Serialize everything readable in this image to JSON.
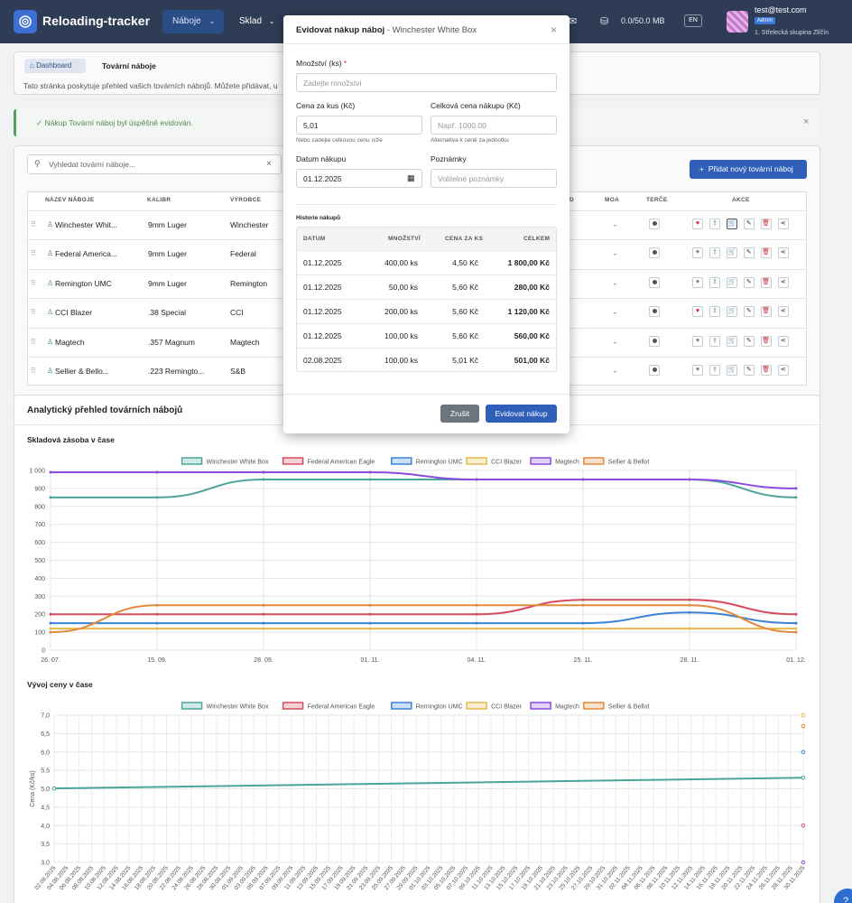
{
  "header": {
    "app_title": "Reloading-tracker",
    "nav": [
      {
        "label": "Náboje",
        "active": true
      },
      {
        "label": "Sklad",
        "active": false
      }
    ],
    "storage": "0.0/50.0 MB",
    "lang": "EN",
    "user_email": "test@test.com",
    "user_role": "Admin",
    "user_group": "1. Střelecká skupina Zlíčín"
  },
  "breadcrumb": {
    "home": "Dashboard",
    "current": "Tovární náboje"
  },
  "description": "Tato stránka poskytuje přehled vašich továrních nábojů. Můžete přidávat, u",
  "alert": {
    "text": "Nákup Tovární náboj byl úspěšně evidován."
  },
  "search": {
    "placeholder": "Vyhledat tovární náboje..."
  },
  "add_button": "Přidat nový tovární náboj",
  "table": {
    "headers": {
      "name": "NÁZEV NÁBOJE",
      "caliber": "KALIBR",
      "maker": "VÝROBCE",
      "d": "D",
      "moa": "MOA",
      "targets": "TERČE",
      "actions": "AKCE"
    },
    "rows": [
      {
        "name": "Winchester Whit...",
        "caliber": "9mm Luger",
        "maker": "Winchester",
        "moa": "-"
      },
      {
        "name": "Federal America...",
        "caliber": "9mm Luger",
        "maker": "Federal",
        "moa": "-"
      },
      {
        "name": "Remington UMC",
        "caliber": "9mm Luger",
        "maker": "Remington",
        "moa": "-"
      },
      {
        "name": "CCI Blazer",
        "caliber": ".38 Special",
        "maker": "CCI",
        "moa": "-"
      },
      {
        "name": "Magtech",
        "caliber": ".357 Magnum",
        "maker": "Magtech",
        "moa": "-"
      },
      {
        "name": "Sellier & Bello...",
        "caliber": ".223 Remingto...",
        "maker": "S&B",
        "moa": "-"
      }
    ]
  },
  "analytics": {
    "title": "Analytický přehled továrních nábojů",
    "stock_title": "Skladová zásoba v čase",
    "price_title": "Vývoj ceny v čase",
    "price_ylabel": "Cena (Kč/ks)"
  },
  "modal": {
    "title": "Evidovat nákup náboj",
    "title_sub": "- Winchester White Box",
    "qty_label": "Množství (ks)",
    "qty_required": "*",
    "qty_placeholder": "Zadejte množství",
    "price_label": "Cena za kus (Kč)",
    "price_value": "5,01",
    "price_hint": "Nebo zadejte celkovou cenu níže",
    "total_label": "Celková cena nákupu (Kč)",
    "total_placeholder": "Např. 1000.00",
    "total_hint": "Alternativa k ceně za jednotku",
    "date_label": "Datum nákupu",
    "date_value": "01.12.2025",
    "notes_label": "Poznámky",
    "notes_placeholder": "Volitelné poznámky",
    "history_label": "Historie nákupů",
    "history_headers": {
      "date": "DATUM",
      "qty": "MNOŽSTVÍ",
      "price": "CENA ZA KS",
      "total": "CELKEM"
    },
    "history": [
      {
        "date": "01.12.2025",
        "qty": "400,00 ks",
        "price": "4,50 Kč",
        "total": "1 800,00 Kč"
      },
      {
        "date": "01.12.2025",
        "qty": "50,00 ks",
        "price": "5,60 Kč",
        "total": "280,00 Kč"
      },
      {
        "date": "01.12.2025",
        "qty": "200,00 ks",
        "price": "5,60 Kč",
        "total": "1 120,00 Kč"
      },
      {
        "date": "01.12.2025",
        "qty": "100,00 ks",
        "price": "5,60 Kč",
        "total": "560,00 Kč"
      },
      {
        "date": "02.08.2025",
        "qty": "100,00 ks",
        "price": "5,01 Kč",
        "total": "501,00 Kč"
      }
    ],
    "cancel": "Zrušit",
    "submit": "Evidovat nákup"
  },
  "colors": {
    "Winchester White Box": "#4aa59a",
    "Federal American Eagle": "#d84a5e",
    "Remington UMC": "#3b82d6",
    "CCI Blazer": "#e8b84a",
    "Magtech": "#8a4be0",
    "Sellier & Bellot": "#e28a3c"
  },
  "chart_data": [
    {
      "type": "line",
      "title": "Skladová zásoba v čase",
      "x": [
        "26. 07.",
        "15. 09.",
        "28. 09.",
        "01. 11.",
        "04. 11.",
        "25. 11.",
        "28. 11.",
        "01. 12."
      ],
      "ylim": [
        0,
        1000
      ],
      "yticks": [
        "0",
        "100",
        "200",
        "300",
        "400",
        "500",
        "600",
        "700",
        "800",
        "900",
        "1 000"
      ],
      "legend": "top",
      "series": [
        {
          "name": "Winchester White Box",
          "values": [
            850,
            850,
            950,
            950,
            950,
            950,
            950,
            850
          ]
        },
        {
          "name": "Federal American Eagle",
          "values": [
            200,
            200,
            200,
            200,
            200,
            280,
            280,
            200
          ]
        },
        {
          "name": "Remington UMC",
          "values": [
            150,
            150,
            150,
            150,
            150,
            150,
            210,
            150
          ]
        },
        {
          "name": "CCI Blazer",
          "values": [
            120,
            120,
            120,
            120,
            120,
            120,
            120,
            120
          ]
        },
        {
          "name": "Magtech",
          "values": [
            990,
            990,
            990,
            990,
            950,
            950,
            950,
            900
          ]
        },
        {
          "name": "Sellier & Bellot",
          "values": [
            100,
            250,
            250,
            250,
            250,
            250,
            250,
            100
          ]
        }
      ]
    },
    {
      "type": "line",
      "title": "Vývoj ceny v čase",
      "ylabel": "Cena (Kč/ks)",
      "ylim": [
        3.0,
        7.0
      ],
      "yticks": [
        "3,0",
        "3,5",
        "4,0",
        "4,5",
        "5,0",
        "5,5",
        "6,0",
        "6,5",
        "7,0"
      ],
      "x_labels": [
        "02.08.2025",
        "04.08.2025",
        "06.08.2025",
        "08.08.2025",
        "10.08.2025",
        "12.08.2025",
        "14.08.2025",
        "16.08.2025",
        "18.08.2025",
        "20.08.2025",
        "22.08.2025",
        "24.08.2025",
        "26.08.2025",
        "28.08.2025",
        "30.08.2025",
        "01.09.2025",
        "03.09.2025",
        "05.09.2025",
        "07.09.2025",
        "09.09.2025",
        "11.09.2025",
        "13.09.2025",
        "15.09.2025",
        "17.09.2025",
        "19.09.2025",
        "21.09.2025",
        "23.09.2025",
        "25.09.2025",
        "27.09.2025",
        "29.09.2025",
        "01.10.2025",
        "03.10.2025",
        "05.10.2025",
        "07.10.2025",
        "09.10.2025",
        "11.10.2025",
        "13.10.2025",
        "15.10.2025",
        "17.10.2025",
        "19.10.2025",
        "21.10.2025",
        "23.10.2025",
        "25.10.2025",
        "27.10.2025",
        "29.10.2025",
        "31.10.2025",
        "02.11.2025",
        "04.11.2025",
        "06.11.2025",
        "08.11.2025",
        "10.11.2025",
        "12.11.2025",
        "14.11.2025",
        "16.11.2025",
        "18.11.2025",
        "20.11.2025",
        "22.11.2025",
        "24.11.2025",
        "26.11.2025",
        "28.11.2025",
        "30.11.2025"
      ],
      "legend": "top",
      "series": [
        {
          "name": "Winchester White Box",
          "values_start_end": [
            5.01,
            5.3
          ]
        },
        {
          "name": "Federal American Eagle",
          "point_end": 4.0
        },
        {
          "name": "Remington UMC",
          "point_end": 6.0
        },
        {
          "name": "CCI Blazer",
          "point_end": 7.0
        },
        {
          "name": "Magtech",
          "point_end": 3.0
        },
        {
          "name": "Sellier & Bellot",
          "point_end": 6.7
        }
      ]
    }
  ],
  "help": "?"
}
